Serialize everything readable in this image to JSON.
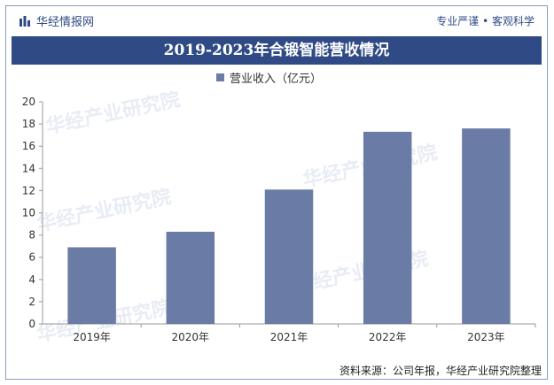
{
  "header": {
    "brand": "华经情报网",
    "slogan": "专业严谨 • 客观科学"
  },
  "title": "2019-2023年合锻智能营收情况",
  "legend": {
    "label": "营业收入（亿元）"
  },
  "source": "资料来源：公司年报，华经产业研究院整理",
  "watermark": "华经产业研究院",
  "colors": {
    "bar": "#6a7ca5",
    "title_bg": "#2f4a84",
    "brand": "#2f4a84"
  },
  "chart_data": {
    "type": "bar",
    "categories": [
      "2019年",
      "2020年",
      "2021年",
      "2022年",
      "2023年"
    ],
    "series": [
      {
        "name": "营业收入（亿元）",
        "values": [
          6.9,
          8.3,
          12.1,
          17.3,
          17.6
        ]
      }
    ],
    "ylim": [
      0,
      20
    ],
    "yticks": [
      0,
      2,
      4,
      6,
      8,
      10,
      12,
      14,
      16,
      18,
      20
    ],
    "grid": false,
    "legend_position": "top-center"
  }
}
